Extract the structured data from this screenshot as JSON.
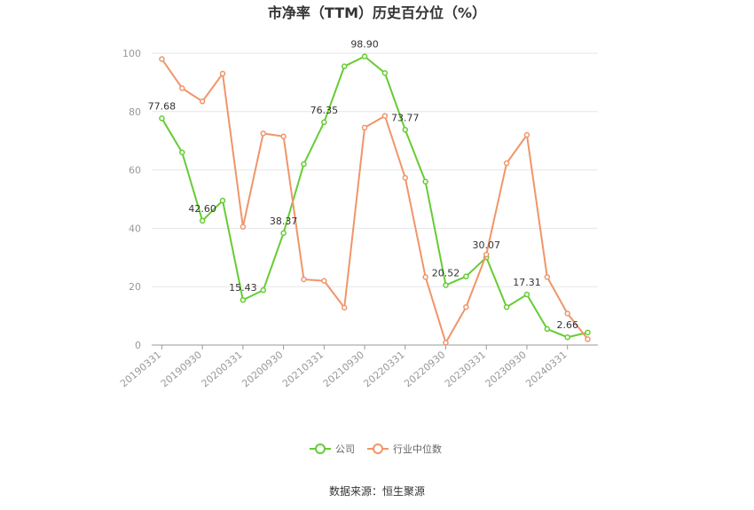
{
  "chart_data": {
    "type": "line",
    "title": "市净率（TTM）历史百分位（%）",
    "xlabel": "",
    "ylabel": "",
    "ylim": [
      0,
      100
    ],
    "yticks": [
      0,
      20,
      40,
      60,
      80,
      100
    ],
    "grid": true,
    "legend_position": "bottom",
    "x": [
      "20190331",
      "20190630",
      "20190930",
      "20191231",
      "20200331",
      "20200630",
      "20200930",
      "20201231",
      "20210331",
      "20210630",
      "20210930",
      "20211231",
      "20220331",
      "20220630",
      "20220930",
      "20221231",
      "20230331",
      "20230630",
      "20230930",
      "20231231",
      "20240331",
      "20240630"
    ],
    "x_tick_labels": [
      "20190331",
      "20190930",
      "20200331",
      "20200930",
      "20210331",
      "20210930",
      "20220331",
      "20220930",
      "20230331",
      "20230930",
      "20240331"
    ],
    "series": [
      {
        "name": "公司",
        "color": "#66cc33",
        "values": [
          77.68,
          66,
          42.6,
          49.5,
          15.43,
          18.8,
          38.37,
          62,
          76.35,
          95.5,
          98.9,
          93.2,
          73.77,
          56,
          20.52,
          23.5,
          30.07,
          13,
          17.31,
          5.5,
          2.66,
          4.3
        ],
        "labels": [
          {
            "index": 0,
            "text": "77.68"
          },
          {
            "index": 2,
            "text": "42.60"
          },
          {
            "index": 4,
            "text": "15.43"
          },
          {
            "index": 6,
            "text": "38.37"
          },
          {
            "index": 8,
            "text": "76.35"
          },
          {
            "index": 10,
            "text": "98.90"
          },
          {
            "index": 12,
            "text": "73.77"
          },
          {
            "index": 14,
            "text": "20.52"
          },
          {
            "index": 16,
            "text": "30.07"
          },
          {
            "index": 18,
            "text": "17.31"
          },
          {
            "index": 20,
            "text": "2.66"
          }
        ]
      },
      {
        "name": "行业中位数",
        "color": "#f0956a",
        "values": [
          98,
          88,
          83.5,
          93,
          40.5,
          72.5,
          71.5,
          22.5,
          22,
          12.8,
          74.5,
          78.5,
          57.3,
          23.3,
          0.8,
          13,
          31,
          62.3,
          72,
          23.3,
          10.8,
          2
        ]
      }
    ],
    "source": "数据来源：恒生聚源"
  }
}
